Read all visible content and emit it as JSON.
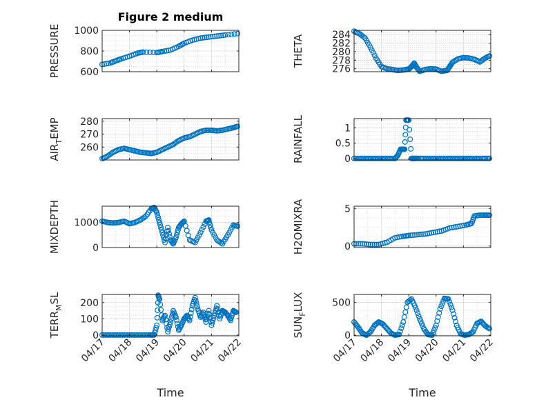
{
  "figure": {
    "title": "Figure 2 medium",
    "x_label": "Time"
  },
  "chart_data": [
    {
      "type": "scatter",
      "title": "Figure 2 medium",
      "xlabel": "",
      "ylabel": "PRESSURE",
      "xlim": [
        0,
        5
      ],
      "ylim": [
        600,
        1000
      ],
      "yticks": [
        600,
        800,
        1000
      ],
      "grid": true,
      "x_tick_labels": [],
      "color": "#0072BD",
      "series": [
        {
          "x": [
            0.0,
            0.3,
            0.5,
            0.7,
            1.0,
            1.3,
            1.5,
            2.0,
            2.2,
            2.5,
            2.8,
            3.0,
            3.3,
            3.6,
            3.9,
            4.2,
            4.5,
            4.95
          ],
          "y": [
            670,
            685,
            705,
            725,
            750,
            780,
            790,
            785,
            795,
            810,
            845,
            875,
            905,
            925,
            935,
            945,
            955,
            968
          ]
        }
      ]
    },
    {
      "type": "scatter",
      "xlabel": "",
      "ylabel": "THETA",
      "xlim": [
        0,
        5
      ],
      "ylim": [
        275.3,
        285
      ],
      "yticks": [
        276,
        278,
        280,
        282,
        284
      ],
      "grid": true,
      "x_tick_labels": [],
      "color": "#0072BD",
      "series": [
        {
          "x": [
            0.0,
            0.2,
            0.4,
            0.6,
            0.8,
            1.0,
            1.2,
            1.4,
            1.6,
            1.8,
            2.0,
            2.1,
            2.2,
            2.3,
            2.4,
            2.6,
            2.8,
            3.0,
            3.2,
            3.4,
            3.5,
            3.6,
            3.8,
            4.0,
            4.2,
            4.4,
            4.6,
            4.8,
            4.95
          ],
          "y": [
            284.8,
            284.2,
            283.2,
            281.0,
            278.5,
            276.5,
            276.0,
            275.8,
            275.6,
            275.7,
            275.9,
            276.5,
            277.3,
            276.2,
            275.4,
            275.8,
            276.0,
            275.9,
            275.4,
            275.6,
            276.5,
            277.5,
            278.3,
            278.6,
            278.5,
            278.2,
            277.6,
            278.5,
            279.0
          ]
        }
      ]
    },
    {
      "type": "scatter",
      "xlabel": "",
      "ylabel": "AIR_TEMP",
      "xlim": [
        0,
        5
      ],
      "ylim": [
        250,
        282
      ],
      "yticks": [
        260,
        270,
        280
      ],
      "grid": true,
      "x_tick_labels": [],
      "color": "#0072BD",
      "series": [
        {
          "x": [
            0.0,
            0.2,
            0.4,
            0.6,
            0.8,
            1.0,
            1.2,
            1.4,
            1.6,
            1.8,
            2.0,
            2.2,
            2.4,
            2.6,
            2.8,
            3.0,
            3.2,
            3.4,
            3.6,
            3.8,
            4.0,
            4.2,
            4.4,
            4.6,
            4.8,
            4.95
          ],
          "y": [
            251,
            253,
            256,
            258,
            259,
            258,
            257,
            256,
            255.5,
            255,
            256,
            258,
            260,
            262,
            265,
            267,
            268,
            270,
            272,
            273,
            273,
            272.5,
            273,
            274,
            275,
            276
          ]
        }
      ]
    },
    {
      "type": "scatter",
      "xlabel": "",
      "ylabel": "RAINFALL",
      "xlim": [
        0,
        5
      ],
      "ylim": [
        -0.05,
        1.3
      ],
      "yticks": [
        0,
        0.5,
        1
      ],
      "grid": true,
      "x_tick_labels": [],
      "color": "#0072BD",
      "series": [
        {
          "x": [
            0.0,
            0.25,
            0.5,
            0.75,
            1.0,
            1.25,
            1.5,
            1.6,
            1.7,
            1.8,
            1.85,
            1.9,
            2.0,
            2.1,
            2.2,
            2.3,
            2.5,
            2.75,
            3.0,
            3.25,
            3.5,
            3.75,
            4.0,
            4.25,
            4.5,
            4.75,
            4.95
          ],
          "y": [
            0,
            0,
            0,
            0,
            0,
            0,
            0,
            0.1,
            0.3,
            0.3,
            0.3,
            1.25,
            1.25,
            0,
            0,
            0,
            0,
            0,
            0,
            0,
            0,
            0,
            0,
            0,
            0,
            0,
            0
          ]
        }
      ]
    },
    {
      "type": "scatter",
      "xlabel": "",
      "ylabel": "MIXDEPTH",
      "xlim": [
        0,
        5
      ],
      "ylim": [
        0,
        1650
      ],
      "yticks": [
        0,
        1000
      ],
      "grid": true,
      "x_tick_labels": [],
      "color": "#0072BD",
      "series": [
        {
          "x": [
            0.0,
            0.2,
            0.4,
            0.6,
            0.8,
            1.0,
            1.2,
            1.4,
            1.6,
            1.8,
            1.9,
            2.0,
            2.1,
            2.2,
            2.3,
            2.4,
            2.5,
            2.6,
            2.7,
            2.8,
            2.9,
            3.0,
            3.2,
            3.4,
            3.6,
            3.8,
            3.9,
            4.0,
            4.2,
            4.4,
            4.6,
            4.8,
            4.95
          ],
          "y": [
            1050,
            1000,
            980,
            1000,
            1050,
            950,
            1000,
            1100,
            1250,
            1550,
            1600,
            1400,
            1000,
            600,
            200,
            800,
            300,
            150,
            400,
            800,
            950,
            1050,
            300,
            200,
            600,
            1050,
            1100,
            700,
            300,
            150,
            500,
            900,
            850
          ]
        }
      ]
    },
    {
      "type": "scatter",
      "xlabel": "",
      "ylabel": "H2OMIXRA",
      "xlim": [
        0,
        5
      ],
      "ylim": [
        -0.2,
        5.3
      ],
      "yticks": [
        0,
        5
      ],
      "grid": true,
      "x_tick_labels": [],
      "color": "#0072BD",
      "series": [
        {
          "x": [
            0.0,
            0.3,
            0.6,
            0.9,
            1.2,
            1.5,
            1.8,
            2.0,
            2.3,
            2.6,
            2.9,
            3.2,
            3.5,
            3.8,
            4.1,
            4.3,
            4.4,
            4.6,
            4.8,
            4.95
          ],
          "y": [
            0.3,
            0.3,
            0.2,
            0.2,
            0.5,
            1.1,
            1.3,
            1.4,
            1.5,
            1.6,
            1.8,
            2.0,
            2.4,
            2.6,
            2.8,
            3.0,
            4.0,
            4.1,
            4.1,
            4.1
          ]
        }
      ]
    },
    {
      "type": "scatter",
      "xlabel": "",
      "ylabel": "TERR_MSL",
      "xlim": [
        0,
        5
      ],
      "ylim": [
        -5,
        250
      ],
      "yticks": [
        0,
        100,
        200
      ],
      "grid": true,
      "x_tick_labels": [
        "04/17",
        "04/18",
        "04/19",
        "04/20",
        "04/21",
        "04/22"
      ],
      "color": "#0072BD",
      "series": [
        {
          "x": [
            0.0,
            0.25,
            0.5,
            0.75,
            1.0,
            1.25,
            1.5,
            1.75,
            1.9,
            2.0,
            2.05,
            2.1,
            2.2,
            2.3,
            2.4,
            2.5,
            2.6,
            2.7,
            2.8,
            2.9,
            3.0,
            3.1,
            3.2,
            3.3,
            3.4,
            3.5,
            3.6,
            3.7,
            3.8,
            3.9,
            4.0,
            4.1,
            4.2,
            4.3,
            4.4,
            4.5,
            4.6,
            4.7,
            4.8,
            4.9
          ],
          "y": [
            0,
            0,
            0,
            0,
            0,
            0,
            0,
            0,
            0,
            60,
            245,
            220,
            90,
            120,
            20,
            80,
            150,
            110,
            30,
            60,
            100,
            120,
            90,
            180,
            230,
            160,
            110,
            140,
            80,
            150,
            60,
            120,
            180,
            100,
            150,
            140,
            120,
            90,
            150,
            140
          ]
        }
      ]
    },
    {
      "type": "scatter",
      "xlabel": "",
      "ylabel": "SUN_FLUX",
      "xlim": [
        0,
        5
      ],
      "ylim": [
        -10,
        620
      ],
      "yticks": [
        0,
        500
      ],
      "grid": true,
      "x_tick_labels": [
        "04/17",
        "04/18",
        "04/19",
        "04/20",
        "04/21",
        "04/22"
      ],
      "color": "#0072BD",
      "series": [
        {
          "x": [
            0.0,
            0.15,
            0.3,
            0.45,
            0.6,
            0.75,
            0.9,
            1.05,
            1.2,
            1.35,
            1.5,
            1.65,
            1.8,
            1.95,
            2.1,
            2.25,
            2.4,
            2.55,
            2.7,
            2.85,
            3.0,
            3.15,
            3.3,
            3.45,
            3.6,
            3.75,
            3.9,
            4.05,
            4.2,
            4.35,
            4.5,
            4.65,
            4.8,
            4.95
          ],
          "y": [
            200,
            120,
            30,
            0,
            50,
            150,
            200,
            170,
            100,
            30,
            0,
            10,
            200,
            500,
            550,
            420,
            250,
            100,
            10,
            0,
            150,
            400,
            560,
            550,
            380,
            150,
            20,
            0,
            10,
            50,
            180,
            210,
            140,
            100
          ]
        }
      ]
    }
  ]
}
